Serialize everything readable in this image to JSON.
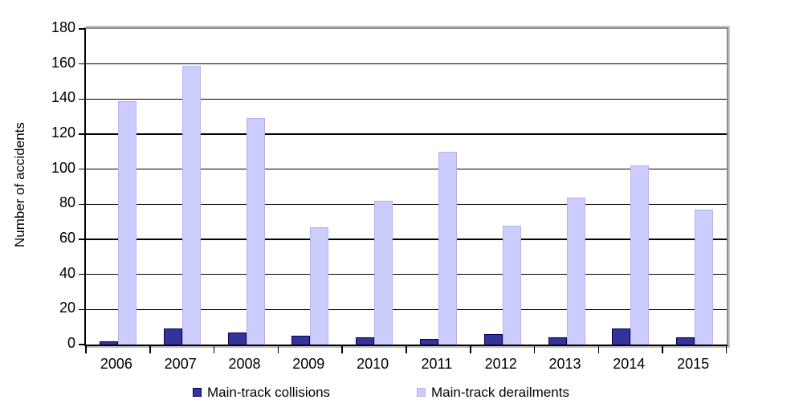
{
  "chart_data": {
    "type": "bar",
    "title": "",
    "categories": [
      "2006",
      "2007",
      "2008",
      "2009",
      "2010",
      "2011",
      "2012",
      "2013",
      "2014",
      "2015"
    ],
    "series": [
      {
        "name": "Main-track collisions",
        "values": [
          2,
          9,
          7,
          5,
          4,
          3,
          6,
          4,
          9,
          4
        ],
        "fill": "#333399",
        "border": "#000066"
      },
      {
        "name": "Main-track derailments",
        "values": [
          139,
          159,
          129,
          67,
          82,
          110,
          68,
          84,
          102,
          77
        ],
        "fill": "#ccccff",
        "border": "#b3b3e6"
      }
    ],
    "xlabel": "",
    "ylabel": "Number of accidents",
    "ylim": [
      0,
      180
    ],
    "ytick_step": 20,
    "grid": true,
    "legend_position": "bottom",
    "colors": {
      "gridline": "#000000",
      "axis": "#000000",
      "plot_border": "#8c8c8c",
      "background": "#ffffff",
      "text": "#000000"
    }
  }
}
